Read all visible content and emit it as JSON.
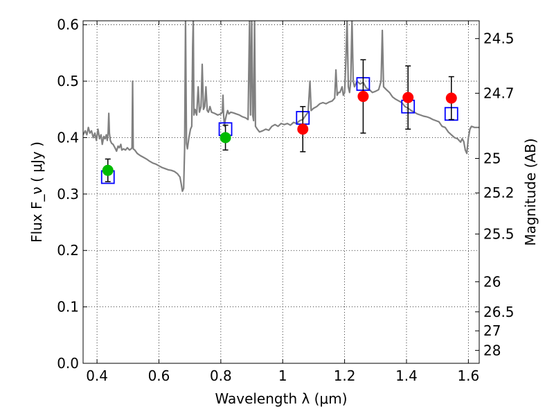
{
  "chart_data": {
    "type": "scatter",
    "xlabel": "Wavelength  λ (μm)",
    "ylabel": "Flux  F_ν  ( μJy )",
    "ylabel_right": "Magnitude (AB)",
    "xlim": [
      0.355,
      1.635
    ],
    "ylim": [
      0.0,
      0.607
    ],
    "grid": true,
    "x_ticks": [
      0.4,
      0.6,
      0.8,
      1.0,
      1.2,
      1.4,
      1.6
    ],
    "x_tick_labels": [
      "0.4",
      "0.6",
      "0.8",
      "1",
      "1.2",
      "1.4",
      "1.6"
    ],
    "y_ticks": [
      0.0,
      0.1,
      0.2,
      0.3,
      0.4,
      0.5,
      0.6
    ],
    "y_tick_labels": [
      "0.0",
      "0.1",
      "0.2",
      "0.3",
      "0.4",
      "0.5",
      "0.6"
    ],
    "right_ticks": [
      {
        "label": "24.5",
        "mag": 24.5
      },
      {
        "label": "24.7",
        "mag": 24.7
      },
      {
        "label": "25",
        "mag": 25.0
      },
      {
        "label": "25.2",
        "mag": 25.2
      },
      {
        "label": "25.5",
        "mag": 25.5
      },
      {
        "label": "26",
        "mag": 26.0
      },
      {
        "label": "26.5",
        "mag": 26.5
      },
      {
        "label": "27",
        "mag": 27.0
      },
      {
        "label": "28",
        "mag": 28.0
      }
    ],
    "series": [
      {
        "kind": "model-spectrum",
        "color": "#808080",
        "points": [
          [
            0.355,
            0.405
          ],
          [
            0.362,
            0.412
          ],
          [
            0.367,
            0.405
          ],
          [
            0.372,
            0.418
          ],
          [
            0.377,
            0.408
          ],
          [
            0.382,
            0.412
          ],
          [
            0.388,
            0.4
          ],
          [
            0.393,
            0.408
          ],
          [
            0.398,
            0.395
          ],
          [
            0.403,
            0.415
          ],
          [
            0.408,
            0.398
          ],
          [
            0.413,
            0.405
          ],
          [
            0.417,
            0.388
          ],
          [
            0.422,
            0.402
          ],
          [
            0.426,
            0.398
          ],
          [
            0.43,
            0.405
          ],
          [
            0.433,
            0.395
          ],
          [
            0.436,
            0.41
          ],
          [
            0.438,
            0.443
          ],
          [
            0.44,
            0.408
          ],
          [
            0.443,
            0.395
          ],
          [
            0.447,
            0.39
          ],
          [
            0.452,
            0.388
          ],
          [
            0.458,
            0.382
          ],
          [
            0.463,
            0.376
          ],
          [
            0.468,
            0.385
          ],
          [
            0.472,
            0.382
          ],
          [
            0.477,
            0.388
          ],
          [
            0.48,
            0.378
          ],
          [
            0.486,
            0.38
          ],
          [
            0.492,
            0.378
          ],
          [
            0.498,
            0.382
          ],
          [
            0.505,
            0.378
          ],
          [
            0.51,
            0.38
          ],
          [
            0.513,
            0.382
          ],
          [
            0.515,
            0.5
          ],
          [
            0.517,
            0.38
          ],
          [
            0.522,
            0.378
          ],
          [
            0.53,
            0.372
          ],
          [
            0.54,
            0.368
          ],
          [
            0.55,
            0.365
          ],
          [
            0.56,
            0.362
          ],
          [
            0.57,
            0.358
          ],
          [
            0.58,
            0.355
          ],
          [
            0.59,
            0.353
          ],
          [
            0.6,
            0.35
          ],
          [
            0.61,
            0.347
          ],
          [
            0.62,
            0.345
          ],
          [
            0.63,
            0.343
          ],
          [
            0.64,
            0.342
          ],
          [
            0.65,
            0.34
          ],
          [
            0.66,
            0.336
          ],
          [
            0.668,
            0.33
          ],
          [
            0.672,
            0.318
          ],
          [
            0.676,
            0.305
          ],
          [
            0.68,
            0.31
          ],
          [
            0.683,
            0.38
          ],
          [
            0.686,
            0.61
          ],
          [
            0.689,
            0.39
          ],
          [
            0.692,
            0.38
          ],
          [
            0.697,
            0.4
          ],
          [
            0.702,
            0.415
          ],
          [
            0.706,
            0.42
          ],
          [
            0.709,
            0.56
          ],
          [
            0.711,
            0.61
          ],
          [
            0.713,
            0.44
          ],
          [
            0.717,
            0.45
          ],
          [
            0.722,
            0.44
          ],
          [
            0.727,
            0.49
          ],
          [
            0.731,
            0.445
          ],
          [
            0.736,
            0.455
          ],
          [
            0.74,
            0.53
          ],
          [
            0.744,
            0.45
          ],
          [
            0.748,
            0.455
          ],
          [
            0.752,
            0.49
          ],
          [
            0.756,
            0.448
          ],
          [
            0.76,
            0.445
          ],
          [
            0.765,
            0.455
          ],
          [
            0.77,
            0.445
          ],
          [
            0.78,
            0.443
          ],
          [
            0.79,
            0.44
          ],
          [
            0.8,
            0.442
          ],
          [
            0.805,
            0.445
          ],
          [
            0.807,
            0.475
          ],
          [
            0.809,
            0.44
          ],
          [
            0.812,
            0.42
          ],
          [
            0.814,
            0.43
          ],
          [
            0.818,
            0.44
          ],
          [
            0.822,
            0.448
          ],
          [
            0.826,
            0.442
          ],
          [
            0.832,
            0.445
          ],
          [
            0.84,
            0.444
          ],
          [
            0.85,
            0.442
          ],
          [
            0.86,
            0.44
          ],
          [
            0.87,
            0.437
          ],
          [
            0.88,
            0.435
          ],
          [
            0.888,
            0.432
          ],
          [
            0.893,
            0.61
          ],
          [
            0.896,
            0.44
          ],
          [
            0.9,
            0.61
          ],
          [
            0.903,
            0.44
          ],
          [
            0.906,
            0.43
          ],
          [
            0.909,
            0.61
          ],
          [
            0.912,
            0.42
          ],
          [
            0.918,
            0.415
          ],
          [
            0.925,
            0.41
          ],
          [
            0.935,
            0.412
          ],
          [
            0.945,
            0.415
          ],
          [
            0.955,
            0.413
          ],
          [
            0.965,
            0.42
          ],
          [
            0.975,
            0.423
          ],
          [
            0.985,
            0.42
          ],
          [
            0.995,
            0.425
          ],
          [
            1.005,
            0.423
          ],
          [
            1.015,
            0.425
          ],
          [
            1.025,
            0.422
          ],
          [
            1.035,
            0.427
          ],
          [
            1.045,
            0.425
          ],
          [
            1.055,
            0.43
          ],
          [
            1.065,
            0.432
          ],
          [
            1.075,
            0.44
          ],
          [
            1.082,
            0.445
          ],
          [
            1.088,
            0.5
          ],
          [
            1.092,
            0.448
          ],
          [
            1.1,
            0.452
          ],
          [
            1.11,
            0.455
          ],
          [
            1.12,
            0.46
          ],
          [
            1.13,
            0.462
          ],
          [
            1.14,
            0.46
          ],
          [
            1.15,
            0.463
          ],
          [
            1.16,
            0.465
          ],
          [
            1.168,
            0.47
          ],
          [
            1.172,
            0.52
          ],
          [
            1.176,
            0.475
          ],
          [
            1.18,
            0.48
          ],
          [
            1.185,
            0.48
          ],
          [
            1.192,
            0.49
          ],
          [
            1.196,
            0.475
          ],
          [
            1.2,
            0.48
          ],
          [
            1.204,
            0.535
          ],
          [
            1.208,
            0.61
          ],
          [
            1.212,
            0.49
          ],
          [
            1.216,
            0.48
          ],
          [
            1.22,
            0.5
          ],
          [
            1.224,
            0.61
          ],
          [
            1.228,
            0.5
          ],
          [
            1.232,
            0.49
          ],
          [
            1.24,
            0.5
          ],
          [
            1.25,
            0.495
          ],
          [
            1.26,
            0.498
          ],
          [
            1.27,
            0.488
          ],
          [
            1.28,
            0.485
          ],
          [
            1.29,
            0.48
          ],
          [
            1.3,
            0.482
          ],
          [
            1.31,
            0.485
          ],
          [
            1.318,
            0.5
          ],
          [
            1.322,
            0.59
          ],
          [
            1.326,
            0.49
          ],
          [
            1.335,
            0.485
          ],
          [
            1.345,
            0.48
          ],
          [
            1.355,
            0.472
          ],
          [
            1.365,
            0.468
          ],
          [
            1.375,
            0.465
          ],
          [
            1.385,
            0.462
          ],
          [
            1.395,
            0.455
          ],
          [
            1.405,
            0.452
          ],
          [
            1.415,
            0.448
          ],
          [
            1.425,
            0.445
          ],
          [
            1.435,
            0.442
          ],
          [
            1.445,
            0.44
          ],
          [
            1.455,
            0.438
          ],
          [
            1.465,
            0.437
          ],
          [
            1.475,
            0.435
          ],
          [
            1.485,
            0.432
          ],
          [
            1.495,
            0.43
          ],
          [
            1.505,
            0.428
          ],
          [
            1.515,
            0.42
          ],
          [
            1.525,
            0.418
          ],
          [
            1.535,
            0.41
          ],
          [
            1.545,
            0.405
          ],
          [
            1.555,
            0.4
          ],
          [
            1.565,
            0.398
          ],
          [
            1.575,
            0.392
          ],
          [
            1.58,
            0.398
          ],
          [
            1.585,
            0.393
          ],
          [
            1.59,
            0.378
          ],
          [
            1.595,
            0.372
          ],
          [
            1.6,
            0.4
          ],
          [
            1.605,
            0.415
          ],
          [
            1.61,
            0.42
          ],
          [
            1.62,
            0.418
          ],
          [
            1.635,
            0.418
          ]
        ]
      },
      {
        "kind": "model-photometry",
        "marker": "square",
        "color": "#0000ff",
        "points": [
          {
            "x": 0.435,
            "y": 0.33
          },
          {
            "x": 0.815,
            "y": 0.415
          },
          {
            "x": 1.065,
            "y": 0.435
          },
          {
            "x": 1.26,
            "y": 0.495
          },
          {
            "x": 1.405,
            "y": 0.455
          },
          {
            "x": 1.545,
            "y": 0.442
          }
        ]
      },
      {
        "kind": "observed-photometry",
        "marker": "circle",
        "points": [
          {
            "x": 0.435,
            "y": 0.342,
            "err": 0.02,
            "color": "#00bb00"
          },
          {
            "x": 0.815,
            "y": 0.4,
            "err": 0.022,
            "color": "#00bb00"
          },
          {
            "x": 1.065,
            "y": 0.415,
            "err": 0.04,
            "color": "#ff0000"
          },
          {
            "x": 1.26,
            "y": 0.473,
            "err": 0.065,
            "color": "#ff0000"
          },
          {
            "x": 1.405,
            "y": 0.471,
            "err": 0.056,
            "color": "#ff0000"
          },
          {
            "x": 1.545,
            "y": 0.47,
            "err": 0.038,
            "color": "#ff0000"
          }
        ]
      }
    ]
  }
}
